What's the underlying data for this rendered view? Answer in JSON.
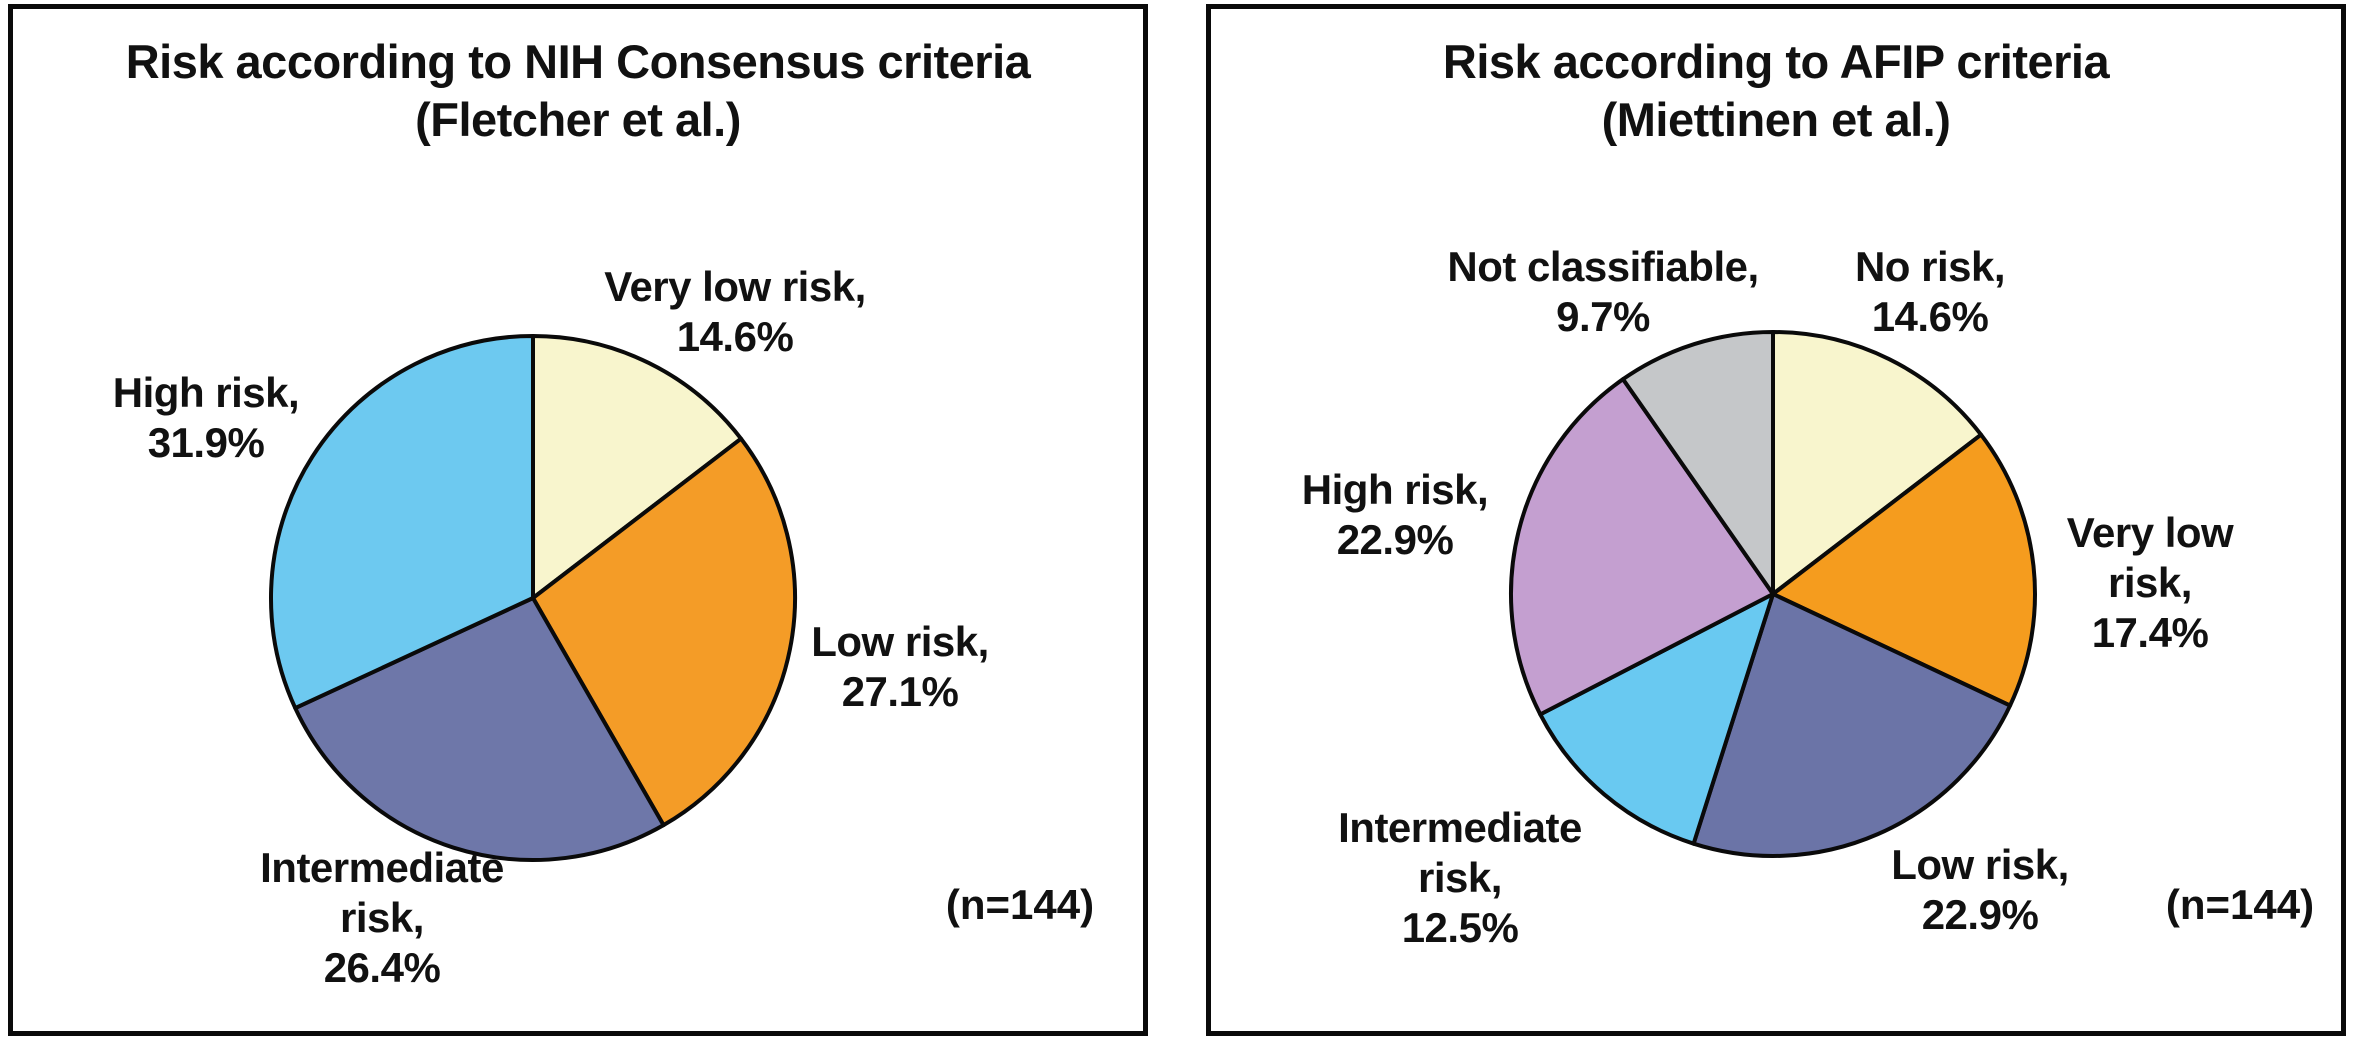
{
  "chart_data": [
    {
      "type": "pie",
      "title": [
        "Risk according to NIH Consensus criteria",
        "(Fletcher et al.)"
      ],
      "n_label": "(n=144)",
      "start_angle_deg": 0,
      "direction": "clockwise",
      "legend_position": "around-slices",
      "slices": [
        {
          "label": "Very low risk",
          "pct": 14.6,
          "color": "#F8F5CD",
          "display": [
            "Very low risk,",
            "14.6%"
          ]
        },
        {
          "label": "Low risk",
          "pct": 27.1,
          "color": "#F49C27",
          "display": [
            "Low risk,",
            "27.1%"
          ]
        },
        {
          "label": "Intermediate risk",
          "pct": 26.4,
          "color": "#6E77A9",
          "display": [
            "Intermediate",
            "risk,",
            "26.4%"
          ]
        },
        {
          "label": "High risk",
          "pct": 31.9,
          "color": "#6DC9F0",
          "display": [
            "High risk,",
            "31.9%"
          ]
        }
      ]
    },
    {
      "type": "pie",
      "title": [
        "Risk according to AFIP criteria",
        "(Miettinen et al.)"
      ],
      "n_label": "(n=144)",
      "start_angle_deg": 0,
      "direction": "clockwise",
      "legend_position": "around-slices",
      "slices": [
        {
          "label": "No risk",
          "pct": 14.6,
          "color": "#F8F5CD",
          "display": [
            "No risk,",
            "14.6%"
          ]
        },
        {
          "label": "Very low risk",
          "pct": 17.4,
          "color": "#F59C1E",
          "display": [
            "Very low",
            "risk,",
            "17.4%"
          ]
        },
        {
          "label": "Low risk",
          "pct": 22.9,
          "color": "#6B74A7",
          "display": [
            "Low risk,",
            "22.9%"
          ]
        },
        {
          "label": "Intermediate risk",
          "pct": 12.5,
          "color": "#69C9F1",
          "display": [
            "Intermediate",
            "risk,",
            "12.5%"
          ]
        },
        {
          "label": "High risk",
          "pct": 22.9,
          "color": "#C49FD0",
          "display": [
            "High risk,",
            "22.9%"
          ]
        },
        {
          "label": "Not classifiable",
          "pct": 9.7,
          "color": "#C5C7C9",
          "display": [
            "Not classifiable,",
            "9.7%"
          ]
        }
      ]
    }
  ],
  "style": {
    "slice_outline_color": "#0a0a0a",
    "panel_border_color": "#0a0a0a",
    "text_color": "#111111",
    "background": "#ffffff"
  }
}
